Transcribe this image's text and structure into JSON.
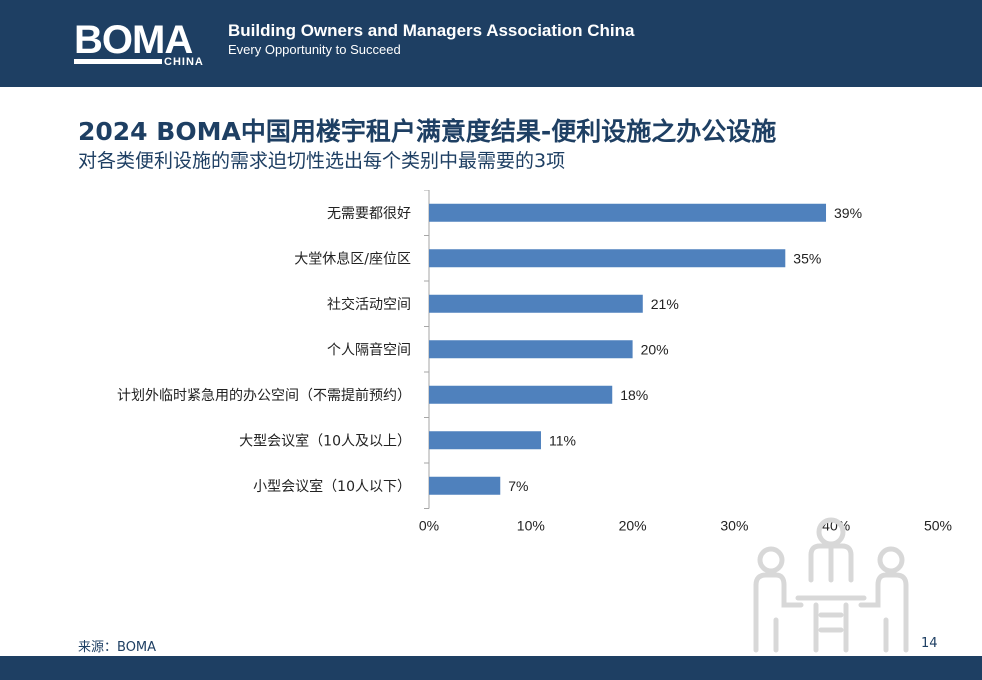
{
  "header": {
    "logo_text": "BOMA",
    "logo_sub": "CHINA",
    "org_name": "Building Owners and Managers Association China",
    "slogan": "Every Opportunity to Succeed"
  },
  "slide": {
    "title": "2024 BOMA中国用楼宇租户满意度结果-便利设施之办公设施",
    "subtitle": "对各类便利设施的需求迫切性选出每个类别中最需要的3项",
    "source": "来源：BOMA",
    "page_number": "14"
  },
  "colors": {
    "header_bg": "#1e3f63",
    "bar": "#4f81bd",
    "title": "#1e3f63"
  },
  "chart_data": {
    "type": "bar",
    "orientation": "horizontal",
    "categories": [
      "无需要都很好",
      "大堂休息区/座位区",
      "社交活动空间",
      "个人隔音空间",
      "计划外临时紧急用的办公空间（不需提前预约）",
      "大型会议室（10人及以上）",
      "小型会议室（10人以下）"
    ],
    "values": [
      39,
      35,
      21,
      20,
      18,
      11,
      7
    ],
    "data_labels": [
      "39%",
      "35%",
      "21%",
      "20%",
      "18%",
      "11%",
      "7%"
    ],
    "xlim": [
      0,
      50
    ],
    "x_ticks": [
      "0%",
      "10%",
      "20%",
      "30%",
      "40%",
      "50%"
    ],
    "x_tick_values": [
      0,
      10,
      20,
      30,
      40,
      50
    ],
    "grid": false,
    "legend": "none"
  }
}
